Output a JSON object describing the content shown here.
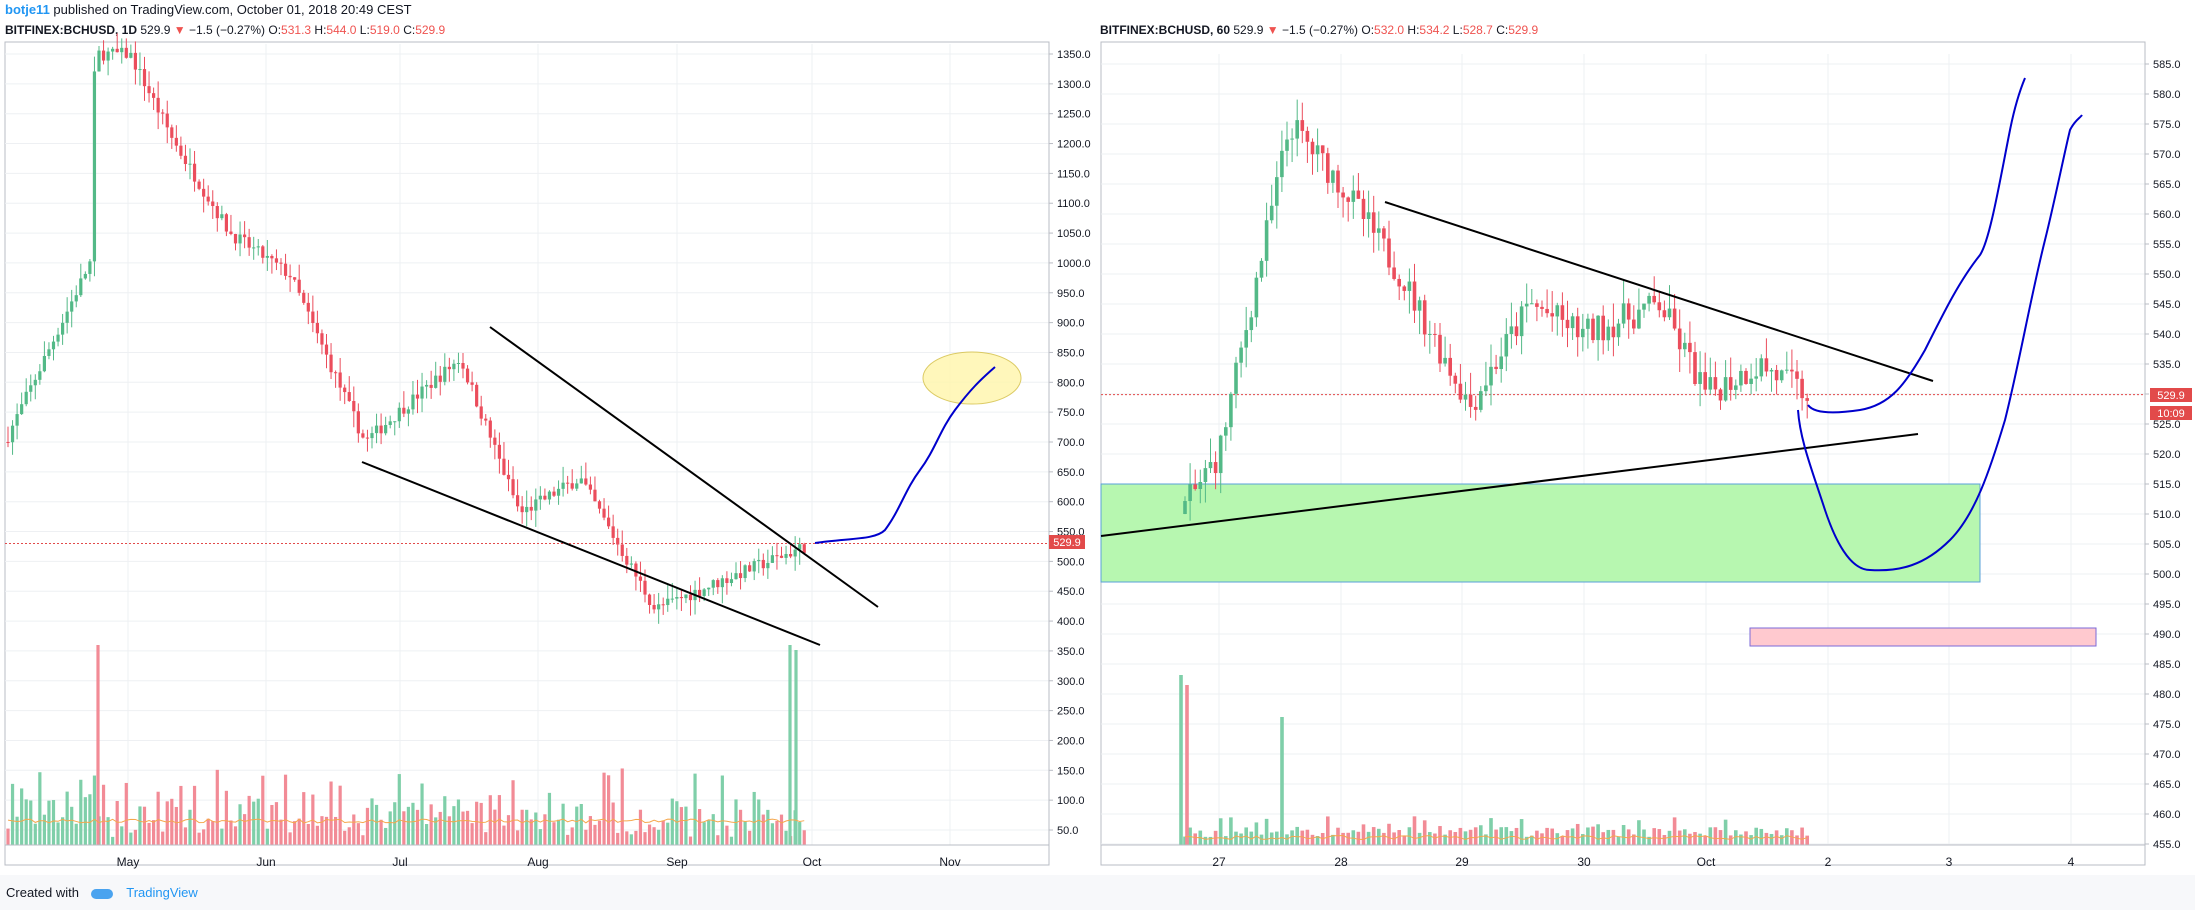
{
  "header": {
    "user": "botje11",
    "published": "published on TradingView.com, October 01, 2018 20:49 CEST"
  },
  "footer": {
    "created_with": "Created with",
    "brand": "TradingView"
  },
  "colors": {
    "up": "#53b987",
    "down": "#eb4d5c",
    "volume_up": "#7fcfa9",
    "volume_down": "#f28b96",
    "ma": "#f5a74c",
    "drawing": "#0000cc",
    "price_line": "#e24a4a",
    "support_zone": "#b7f7b0",
    "target_zone": "#ffc9cf",
    "ellipse": "#fff6b0"
  },
  "left": {
    "ticker": {
      "symbol": "BITFINEX:BCHUSD, 1D",
      "price": "529.9",
      "arrow": "▼",
      "change": "−1.5 (−0.27%)",
      "o_label": "O:",
      "o": "531.3",
      "h_label": "H:",
      "h": "544.0",
      "l_label": "L:",
      "l": "519.0",
      "c_label": "C:",
      "c": "529.9"
    },
    "price_badge": "529.9",
    "y_ticks": [
      "1350.0",
      "1300.0",
      "1250.0",
      "1200.0",
      "1150.0",
      "1100.0",
      "1050.0",
      "1000.0",
      "950.0",
      "900.0",
      "850.0",
      "800.0",
      "750.0",
      "700.0",
      "650.0",
      "600.0",
      "550.0",
      "500.0",
      "450.0",
      "400.0",
      "350.0",
      "300.0",
      "250.0",
      "200.0",
      "150.0",
      "100.0",
      "50.0"
    ],
    "x_ticks": [
      "May",
      "Jun",
      "Jul",
      "Aug",
      "Sep",
      "Oct",
      "Nov"
    ]
  },
  "right": {
    "ticker": {
      "symbol": "BITFINEX:BCHUSD, 60",
      "price": "529.9",
      "arrow": "▼",
      "change": "−1.5 (−0.27%)",
      "o_label": "O:",
      "o": "532.0",
      "h_label": "H:",
      "h": "534.2",
      "l_label": "L:",
      "l": "528.7",
      "c_label": "C:",
      "c": "529.9"
    },
    "price_badge": "529.9",
    "countdown_badge": "10:09",
    "y_ticks": [
      "585.0",
      "580.0",
      "575.0",
      "570.0",
      "565.0",
      "560.0",
      "555.0",
      "550.0",
      "545.0",
      "540.0",
      "535.0",
      "530.0",
      "525.0",
      "520.0",
      "515.0",
      "510.0",
      "505.0",
      "500.0",
      "495.0",
      "490.0",
      "485.0",
      "480.0",
      "475.0",
      "470.0",
      "465.0",
      "460.0",
      "455.0"
    ],
    "x_ticks": [
      "27",
      "28",
      "29",
      "30",
      "Oct",
      "2",
      "3",
      "4"
    ]
  },
  "chart_data": [
    {
      "type": "candlestick",
      "title": "BITFINEX:BCHUSD, 1D",
      "timeframe": "1D",
      "ylim": [
        50,
        1350
      ],
      "last_price": 529.9,
      "x": [
        "May",
        "Jun",
        "Jul",
        "Aug",
        "Sep",
        "Oct",
        "Nov"
      ],
      "close_path": [
        {
          "x": "Apr 20",
          "y": 700
        },
        {
          "x": "May 01",
          "y": 1000
        },
        {
          "x": "May 05",
          "y": 1350
        },
        {
          "x": "May 12",
          "y": 1350
        },
        {
          "x": "May 20",
          "y": 1200
        },
        {
          "x": "Jun 01",
          "y": 1050
        },
        {
          "x": "Jun 15",
          "y": 980
        },
        {
          "x": "Jul 01",
          "y": 700
        },
        {
          "x": "Jul 15",
          "y": 760
        },
        {
          "x": "Jul 25",
          "y": 840
        },
        {
          "x": "Aug 10",
          "y": 580
        },
        {
          "x": "Aug 25",
          "y": 640
        },
        {
          "x": "Sep 10",
          "y": 420
        },
        {
          "x": "Sep 20",
          "y": 470
        },
        {
          "x": "Oct 01",
          "y": 529.9
        }
      ],
      "annotations": [
        "falling wedge",
        "projected path to ~800",
        "target ellipse ~800"
      ]
    },
    {
      "type": "candlestick",
      "title": "BITFINEX:BCHUSD, 60",
      "timeframe": "60",
      "ylim": [
        455,
        585
      ],
      "last_price": 529.9,
      "x": [
        "27",
        "28",
        "29",
        "30",
        "Oct",
        "2",
        "3",
        "4"
      ],
      "close_path": [
        {
          "x": "Sep 26 12:00",
          "y": 510
        },
        {
          "x": "Sep 27 00:00",
          "y": 520
        },
        {
          "x": "Sep 27 12:00",
          "y": 575
        },
        {
          "x": "Sep 28 00:00",
          "y": 565
        },
        {
          "x": "Sep 28 12:00",
          "y": 550
        },
        {
          "x": "Sep 29 00:00",
          "y": 528
        },
        {
          "x": "Sep 29 12:00",
          "y": 545
        },
        {
          "x": "Sep 30 00:00",
          "y": 540
        },
        {
          "x": "Sep 30 12:00",
          "y": 545
        },
        {
          "x": "Oct 01 00:00",
          "y": 530
        },
        {
          "x": "Oct 01 12:00",
          "y": 535
        },
        {
          "x": "Oct 01 20:00",
          "y": 529.9
        }
      ],
      "zones": [
        {
          "label": "support",
          "from": 500,
          "to": 515
        },
        {
          "label": "target",
          "from": 488,
          "to": 491
        }
      ],
      "annotations": [
        "symmetrical triangle",
        "projected paths up to ~580"
      ]
    }
  ]
}
